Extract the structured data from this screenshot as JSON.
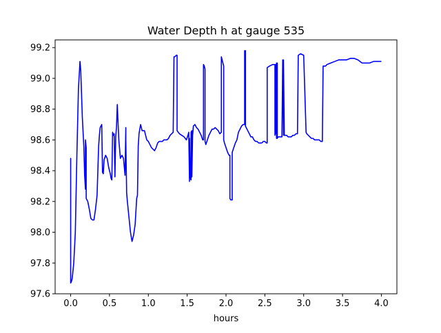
{
  "chart_data": {
    "type": "line",
    "title": "Water Depth h at gauge 535",
    "xlabel": "hours",
    "ylabel": "",
    "xlim": [
      -0.2,
      4.2
    ],
    "ylim": [
      97.6,
      99.25
    ],
    "xticks": [
      0.0,
      0.5,
      1.0,
      1.5,
      2.0,
      2.5,
      3.0,
      3.5,
      4.0
    ],
    "xtick_labels": [
      "0.0",
      "0.5",
      "1.0",
      "1.5",
      "2.0",
      "2.5",
      "3.0",
      "3.5",
      "4.0"
    ],
    "yticks": [
      97.6,
      97.8,
      98.0,
      98.2,
      98.4,
      98.6,
      98.8,
      99.0,
      99.2
    ],
    "ytick_labels": [
      "97.6",
      "97.8",
      "98.0",
      "98.2",
      "98.4",
      "98.6",
      "98.8",
      "99.0",
      "99.2"
    ],
    "grid": false,
    "legend": "none",
    "series": [
      {
        "color": "#0000ff",
        "x": [
          0.0,
          0.0,
          0.0,
          0.01,
          0.02,
          0.04,
          0.06,
          0.08,
          0.1,
          0.12,
          0.13,
          0.15,
          0.17,
          0.18,
          0.19,
          0.19,
          0.2,
          0.2,
          0.21,
          0.22,
          0.24,
          0.26,
          0.28,
          0.3,
          0.32,
          0.34,
          0.36,
          0.37,
          0.38,
          0.4,
          0.41,
          0.42,
          0.43,
          0.45,
          0.47,
          0.49,
          0.51,
          0.52,
          0.53,
          0.54,
          0.55,
          0.56,
          0.57,
          0.58,
          0.59,
          0.6,
          0.62,
          0.64,
          0.66,
          0.68,
          0.7,
          0.71,
          0.71,
          0.72,
          0.72,
          0.73,
          0.75,
          0.77,
          0.79,
          0.81,
          0.83,
          0.85,
          0.86,
          0.87,
          0.88,
          0.9,
          0.92,
          0.95,
          0.98,
          1.0,
          1.02,
          1.04,
          1.06,
          1.08,
          1.1,
          1.12,
          1.14,
          1.16,
          1.18,
          1.2,
          1.22,
          1.24,
          1.26,
          1.28,
          1.3,
          1.32,
          1.33,
          1.34,
          1.36,
          1.37,
          1.37,
          1.4,
          1.43,
          1.46,
          1.49,
          1.51,
          1.52,
          1.53,
          1.53,
          1.54,
          1.55,
          1.55,
          1.56,
          1.56,
          1.57,
          1.58,
          1.6,
          1.62,
          1.64,
          1.66,
          1.68,
          1.7,
          1.71,
          1.71,
          1.72,
          1.73,
          1.73,
          1.74,
          1.76,
          1.78,
          1.8,
          1.82,
          1.84,
          1.86,
          1.88,
          1.9,
          1.92,
          1.94,
          1.94,
          1.95,
          1.96,
          1.97,
          1.97,
          1.98,
          2.0,
          2.02,
          2.04,
          2.05,
          2.05,
          2.06,
          2.07,
          2.08,
          2.08,
          2.1,
          2.12,
          2.14,
          2.16,
          2.18,
          2.2,
          2.22,
          2.24,
          2.24,
          2.25,
          2.25,
          2.26,
          2.28,
          2.3,
          2.32,
          2.34,
          2.36,
          2.38,
          2.4,
          2.42,
          2.44,
          2.46,
          2.48,
          2.5,
          2.52,
          2.53,
          2.53,
          2.56,
          2.6,
          2.63,
          2.63,
          2.64,
          2.64,
          2.65,
          2.65,
          2.66,
          2.66,
          2.67,
          2.68,
          2.7,
          2.72,
          2.73,
          2.73,
          2.74,
          2.74,
          2.75,
          2.75,
          2.76,
          2.78,
          2.8,
          2.82,
          2.84,
          2.86,
          2.88,
          2.9,
          2.92,
          2.93,
          2.93,
          2.96,
          3.0,
          3.03,
          3.03,
          3.04,
          3.06,
          3.08,
          3.1,
          3.12,
          3.14,
          3.16,
          3.18,
          3.2,
          3.22,
          3.24,
          3.25,
          3.25,
          3.26,
          3.28,
          3.3,
          3.35,
          3.4,
          3.45,
          3.5,
          3.55,
          3.6,
          3.65,
          3.7,
          3.75,
          3.8,
          3.85,
          3.9,
          3.95,
          4.0
        ],
        "y": [
          97.98,
          98.48,
          97.67,
          97.68,
          97.7,
          97.8,
          98.0,
          98.5,
          98.93,
          99.11,
          99.05,
          98.75,
          98.55,
          98.37,
          98.28,
          98.6,
          98.55,
          98.22,
          98.21,
          98.2,
          98.15,
          98.09,
          98.08,
          98.08,
          98.15,
          98.24,
          98.56,
          98.63,
          98.68,
          98.7,
          98.39,
          98.38,
          98.47,
          98.5,
          98.48,
          98.42,
          98.38,
          98.35,
          98.34,
          98.65,
          98.63,
          98.64,
          98.36,
          98.62,
          98.68,
          98.83,
          98.6,
          98.48,
          98.5,
          98.48,
          98.37,
          98.68,
          98.6,
          98.28,
          98.26,
          98.2,
          98.1,
          98.0,
          97.94,
          97.98,
          98.05,
          98.22,
          98.24,
          98.56,
          98.64,
          98.7,
          98.66,
          98.66,
          98.6,
          98.59,
          98.57,
          98.55,
          98.54,
          98.53,
          98.55,
          98.58,
          98.59,
          98.59,
          98.59,
          98.6,
          98.6,
          98.6,
          98.61,
          98.63,
          98.64,
          98.65,
          99.14,
          99.14,
          99.15,
          99.15,
          98.66,
          98.64,
          98.63,
          98.62,
          98.6,
          98.63,
          98.65,
          98.33,
          98.61,
          98.35,
          98.34,
          98.65,
          98.66,
          98.36,
          98.63,
          98.69,
          98.7,
          98.68,
          98.67,
          98.65,
          98.63,
          98.6,
          98.6,
          99.09,
          99.08,
          99.06,
          98.59,
          98.57,
          98.6,
          98.63,
          98.65,
          98.67,
          98.67,
          98.68,
          98.67,
          98.66,
          98.64,
          98.65,
          99.14,
          99.12,
          99.1,
          99.08,
          98.6,
          98.58,
          98.55,
          98.52,
          98.5,
          98.5,
          98.22,
          98.21,
          98.21,
          98.21,
          98.52,
          98.55,
          98.58,
          98.6,
          98.65,
          98.67,
          98.69,
          98.7,
          98.7,
          99.18,
          99.18,
          98.69,
          98.68,
          98.66,
          98.64,
          98.62,
          98.62,
          98.6,
          98.59,
          98.59,
          98.58,
          98.58,
          98.58,
          98.59,
          98.59,
          98.58,
          98.58,
          99.07,
          99.08,
          99.09,
          99.09,
          98.63,
          99.09,
          98.64,
          99.1,
          98.61,
          99.1,
          98.61,
          98.62,
          98.62,
          98.62,
          98.62,
          99.12,
          99.12,
          98.63,
          99.12,
          98.63,
          98.63,
          98.63,
          98.63,
          98.62,
          98.62,
          98.62,
          98.63,
          98.63,
          98.64,
          98.64,
          99.15,
          99.15,
          99.16,
          99.15,
          98.66,
          98.65,
          98.64,
          98.63,
          98.62,
          98.61,
          98.61,
          98.6,
          98.6,
          98.6,
          98.6,
          98.59,
          98.59,
          99.08,
          99.08,
          99.08,
          99.08,
          99.09,
          99.1,
          99.11,
          99.12,
          99.12,
          99.12,
          99.13,
          99.13,
          99.12,
          99.1,
          99.1,
          99.1,
          99.11,
          99.11,
          99.11
        ]
      }
    ]
  }
}
